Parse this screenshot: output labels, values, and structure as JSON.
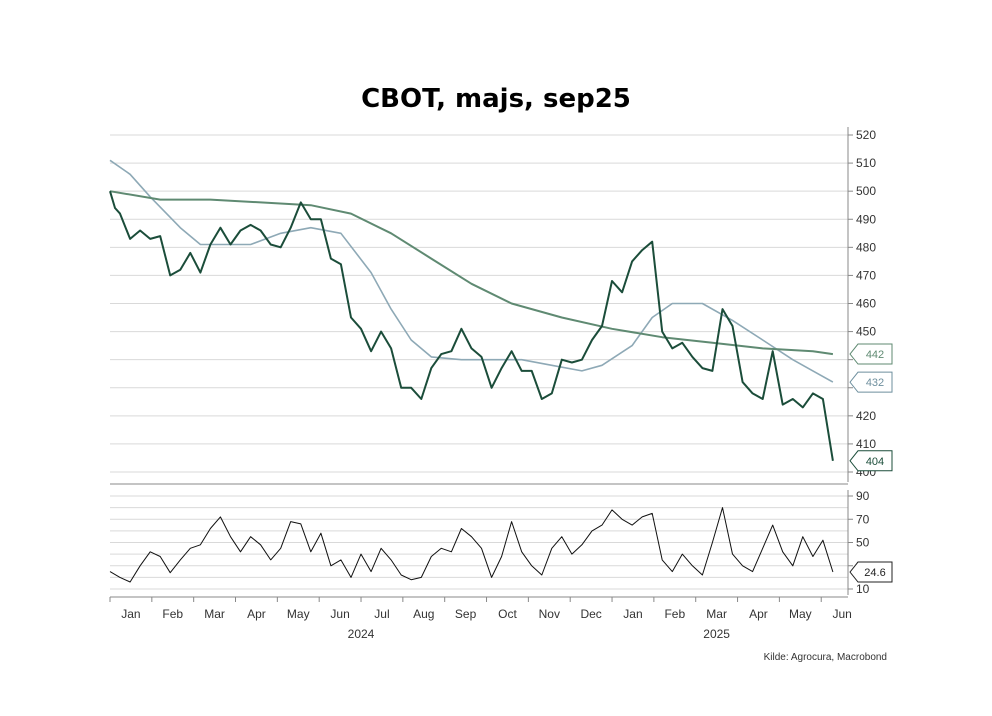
{
  "title": "CBOT, majs, sep25",
  "source": "Kilde: Agrocura, Macrobond",
  "colors": {
    "price": "#1b4d3a",
    "ma_long": "#5f8a72",
    "ma_short": "#8ea9b6",
    "oscillator": "#111111",
    "grid": "#d9d9d9",
    "axis": "#888888"
  },
  "chart_data": [
    {
      "type": "line",
      "title": "CBOT, majs, sep25",
      "ylim": [
        400,
        520
      ],
      "yticks": [
        "400",
        "410",
        "420",
        "430",
        "440",
        "450",
        "460",
        "470",
        "480",
        "490",
        "500",
        "510",
        "520"
      ],
      "x_months": [
        "Jan",
        "Feb",
        "Mar",
        "Apr",
        "May",
        "Jun",
        "Jul",
        "Aug",
        "Sep",
        "Oct",
        "Nov",
        "Dec",
        "Jan",
        "Feb",
        "Mar",
        "Apr",
        "May",
        "Jun"
      ],
      "x_years": [
        "2024",
        "2025"
      ],
      "last_value_labels": [
        "442",
        "432",
        "404"
      ],
      "series": [
        {
          "role": "price",
          "points": [
            [
              2024.0,
              500
            ],
            [
              2024.01,
              494
            ],
            [
              2024.02,
              492
            ],
            [
              2024.04,
              483
            ],
            [
              2024.06,
              486
            ],
            [
              2024.08,
              483
            ],
            [
              2024.1,
              484
            ],
            [
              2024.12,
              470
            ],
            [
              2024.14,
              472
            ],
            [
              2024.16,
              478
            ],
            [
              2024.18,
              471
            ],
            [
              2024.2,
              481
            ],
            [
              2024.22,
              487
            ],
            [
              2024.24,
              481
            ],
            [
              2024.26,
              486
            ],
            [
              2024.28,
              488
            ],
            [
              2024.3,
              486
            ],
            [
              2024.32,
              481
            ],
            [
              2024.34,
              480
            ],
            [
              2024.36,
              487
            ],
            [
              2024.38,
              496
            ],
            [
              2024.4,
              490
            ],
            [
              2024.42,
              490
            ],
            [
              2024.44,
              476
            ],
            [
              2024.46,
              474
            ],
            [
              2024.48,
              455
            ],
            [
              2024.5,
              451
            ],
            [
              2024.52,
              443
            ],
            [
              2024.54,
              450
            ],
            [
              2024.56,
              444
            ],
            [
              2024.58,
              430
            ],
            [
              2024.6,
              430
            ],
            [
              2024.62,
              426
            ],
            [
              2024.64,
              437
            ],
            [
              2024.66,
              442
            ],
            [
              2024.68,
              443
            ],
            [
              2024.7,
              451
            ],
            [
              2024.72,
              444
            ],
            [
              2024.74,
              441
            ],
            [
              2024.76,
              430
            ],
            [
              2024.78,
              437
            ],
            [
              2024.8,
              443
            ],
            [
              2024.82,
              436
            ],
            [
              2024.84,
              436
            ],
            [
              2024.86,
              426
            ],
            [
              2024.88,
              428
            ],
            [
              2024.9,
              440
            ],
            [
              2024.92,
              439
            ],
            [
              2024.94,
              440
            ],
            [
              2024.96,
              447
            ],
            [
              2024.98,
              452
            ],
            [
              2025.0,
              468
            ],
            [
              2025.02,
              464
            ],
            [
              2025.04,
              475
            ],
            [
              2025.06,
              479
            ],
            [
              2025.08,
              482
            ],
            [
              2025.1,
              450
            ],
            [
              2025.12,
              444
            ],
            [
              2025.14,
              446
            ],
            [
              2025.16,
              441
            ],
            [
              2025.18,
              437
            ],
            [
              2025.2,
              436
            ],
            [
              2025.22,
              458
            ],
            [
              2025.24,
              452
            ],
            [
              2025.26,
              432
            ],
            [
              2025.28,
              428
            ],
            [
              2025.3,
              426
            ],
            [
              2025.32,
              443
            ],
            [
              2025.34,
              424
            ],
            [
              2025.36,
              426
            ],
            [
              2025.38,
              423
            ],
            [
              2025.4,
              428
            ],
            [
              2025.42,
              426
            ],
            [
              2025.44,
              404
            ]
          ]
        },
        {
          "role": "long moving average",
          "points": [
            [
              2024.0,
              500
            ],
            [
              2024.1,
              497
            ],
            [
              2024.2,
              497
            ],
            [
              2024.3,
              496
            ],
            [
              2024.4,
              495
            ],
            [
              2024.48,
              492
            ],
            [
              2024.56,
              485
            ],
            [
              2024.64,
              476
            ],
            [
              2024.72,
              467
            ],
            [
              2024.8,
              460
            ],
            [
              2024.9,
              455
            ],
            [
              2025.0,
              451
            ],
            [
              2025.1,
              448
            ],
            [
              2025.2,
              446
            ],
            [
              2025.3,
              444
            ],
            [
              2025.4,
              443
            ],
            [
              2025.44,
              442
            ]
          ]
        },
        {
          "role": "short moving average",
          "points": [
            [
              2024.0,
              511
            ],
            [
              2024.04,
              506
            ],
            [
              2024.08,
              498
            ],
            [
              2024.14,
              487
            ],
            [
              2024.18,
              481
            ],
            [
              2024.22,
              481
            ],
            [
              2024.28,
              481
            ],
            [
              2024.34,
              485
            ],
            [
              2024.4,
              487
            ],
            [
              2024.46,
              485
            ],
            [
              2024.52,
              471
            ],
            [
              2024.56,
              458
            ],
            [
              2024.6,
              447
            ],
            [
              2024.64,
              441
            ],
            [
              2024.7,
              440
            ],
            [
              2024.76,
              440
            ],
            [
              2024.82,
              440
            ],
            [
              2024.88,
              438
            ],
            [
              2024.94,
              436
            ],
            [
              2024.98,
              438
            ],
            [
              2025.04,
              445
            ],
            [
              2025.08,
              455
            ],
            [
              2025.12,
              460
            ],
            [
              2025.18,
              460
            ],
            [
              2025.24,
              454
            ],
            [
              2025.3,
              447
            ],
            [
              2025.36,
              440
            ],
            [
              2025.4,
              436
            ],
            [
              2025.44,
              432
            ]
          ]
        }
      ]
    },
    {
      "type": "line",
      "ylim": [
        10,
        90
      ],
      "yticks": [
        "10",
        "30",
        "50",
        "70",
        "90"
      ],
      "last_value_label": "24.6",
      "series": [
        {
          "role": "oscillator",
          "points": [
            [
              2024.0,
              25
            ],
            [
              2024.02,
              20
            ],
            [
              2024.04,
              16
            ],
            [
              2024.06,
              30
            ],
            [
              2024.08,
              42
            ],
            [
              2024.1,
              38
            ],
            [
              2024.12,
              24
            ],
            [
              2024.14,
              35
            ],
            [
              2024.16,
              45
            ],
            [
              2024.18,
              48
            ],
            [
              2024.2,
              62
            ],
            [
              2024.22,
              72
            ],
            [
              2024.24,
              55
            ],
            [
              2024.26,
              42
            ],
            [
              2024.28,
              55
            ],
            [
              2024.3,
              48
            ],
            [
              2024.32,
              35
            ],
            [
              2024.34,
              45
            ],
            [
              2024.36,
              68
            ],
            [
              2024.38,
              66
            ],
            [
              2024.4,
              42
            ],
            [
              2024.42,
              58
            ],
            [
              2024.44,
              30
            ],
            [
              2024.46,
              35
            ],
            [
              2024.48,
              20
            ],
            [
              2024.5,
              40
            ],
            [
              2024.52,
              25
            ],
            [
              2024.54,
              45
            ],
            [
              2024.56,
              35
            ],
            [
              2024.58,
              22
            ],
            [
              2024.6,
              18
            ],
            [
              2024.62,
              20
            ],
            [
              2024.64,
              38
            ],
            [
              2024.66,
              45
            ],
            [
              2024.68,
              42
            ],
            [
              2024.7,
              62
            ],
            [
              2024.72,
              55
            ],
            [
              2024.74,
              45
            ],
            [
              2024.76,
              20
            ],
            [
              2024.78,
              38
            ],
            [
              2024.8,
              68
            ],
            [
              2024.82,
              42
            ],
            [
              2024.84,
              30
            ],
            [
              2024.86,
              22
            ],
            [
              2024.88,
              45
            ],
            [
              2024.9,
              55
            ],
            [
              2024.92,
              40
            ],
            [
              2024.94,
              48
            ],
            [
              2024.96,
              60
            ],
            [
              2024.98,
              65
            ],
            [
              2025.0,
              78
            ],
            [
              2025.02,
              70
            ],
            [
              2025.04,
              65
            ],
            [
              2025.06,
              72
            ],
            [
              2025.08,
              75
            ],
            [
              2025.1,
              35
            ],
            [
              2025.12,
              25
            ],
            [
              2025.14,
              40
            ],
            [
              2025.16,
              30
            ],
            [
              2025.18,
              22
            ],
            [
              2025.2,
              50
            ],
            [
              2025.22,
              80
            ],
            [
              2025.24,
              40
            ],
            [
              2025.26,
              30
            ],
            [
              2025.28,
              25
            ],
            [
              2025.3,
              45
            ],
            [
              2025.32,
              65
            ],
            [
              2025.34,
              42
            ],
            [
              2025.36,
              30
            ],
            [
              2025.38,
              55
            ],
            [
              2025.4,
              38
            ],
            [
              2025.42,
              52
            ],
            [
              2025.44,
              24.6
            ]
          ]
        }
      ]
    }
  ]
}
